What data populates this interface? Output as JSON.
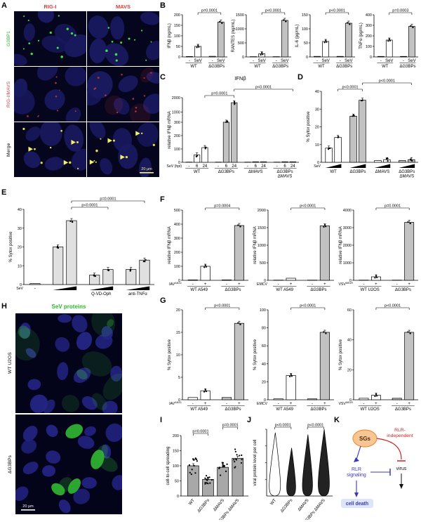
{
  "panels": {
    "A": "A",
    "B": "B",
    "C": "C",
    "D": "D",
    "E": "E",
    "F": "F",
    "G": "G",
    "H": "H",
    "I": "I",
    "J": "J",
    "K": "K"
  },
  "colors": {
    "wt_bar": "#ffffff",
    "ko_bar": "#c2c2c2",
    "red_label": "#e03a3a",
    "green_label": "#2db82d",
    "blue_text": "#3a3ab8",
    "red_text": "#d42020",
    "sg_fill": "#f8c695",
    "sg_stroke": "#e79440"
  },
  "panelA": {
    "col_headers": [
      "RIG-I",
      "MAVS"
    ],
    "row_labels": [
      "G3BP1",
      "RIG-I/MAVS",
      "Merge"
    ],
    "scale_bar_label": "20 μm"
  },
  "panelH": {
    "title": "SeV proteins",
    "row_labels": [
      "WT U2OS",
      "ΔG3BPs"
    ],
    "scale_bar_label": "20 μm"
  },
  "panelK": {
    "sg_label": "SGs",
    "rlr_independent_1": "RLR-",
    "rlr_independent_2": "independent",
    "rlr_signaling_1": "RLR",
    "rlr_signaling_2": "signaling",
    "virus": "virus",
    "cell_death": "cell death"
  },
  "chart_data": {
    "panelB": [
      {
        "type": "bar",
        "ylabel": "IFNβ (ng/mL)",
        "ylim": [
          0,
          200
        ],
        "yticks": [
          0,
          50,
          100,
          150,
          200
        ],
        "values": [
          2,
          50,
          3,
          165
        ],
        "bar_labels": [
          "-",
          "SeV",
          "-",
          "SeV"
        ],
        "bar_fills": [
          "#ffffff",
          "#ffffff",
          "#c2c2c2",
          "#c2c2c2"
        ],
        "groups": [
          {
            "label": "WT",
            "from": 0,
            "to": 1
          },
          {
            "label": "ΔG3BPs",
            "from": 2,
            "to": 3
          }
        ],
        "group_underline": true,
        "dots": true,
        "sig": [
          {
            "from": 1,
            "to": 3,
            "label": "p=0.0001",
            "level": 0
          }
        ]
      },
      {
        "type": "bar",
        "ylabel": "RANTES (ng/mL)",
        "ylim": [
          0,
          1500
        ],
        "yticks": [
          0,
          500,
          1000,
          1500
        ],
        "values": [
          10,
          110,
          10,
          1300
        ],
        "bar_labels": [
          "-",
          "SeV",
          "-",
          "SeV"
        ],
        "bar_fills": [
          "#ffffff",
          "#ffffff",
          "#c2c2c2",
          "#c2c2c2"
        ],
        "groups": [
          {
            "label": "WT",
            "from": 0,
            "to": 1
          },
          {
            "label": "ΔG3BPs",
            "from": 2,
            "to": 3
          }
        ],
        "group_underline": true,
        "dots": true,
        "sig": [
          {
            "from": 1,
            "to": 3,
            "label": "p<0.0001",
            "level": 0
          }
        ]
      },
      {
        "type": "bar",
        "ylabel": "IL-6 (pg/mL)",
        "ylim": [
          0,
          150
        ],
        "yticks": [
          0,
          50,
          100,
          150
        ],
        "values": [
          2,
          55,
          2,
          120
        ],
        "bar_labels": [
          "-",
          "SeV",
          "-",
          "SeV"
        ],
        "bar_fills": [
          "#ffffff",
          "#ffffff",
          "#c2c2c2",
          "#c2c2c2"
        ],
        "groups": [
          {
            "label": "WT",
            "from": 0,
            "to": 1
          },
          {
            "label": "ΔG3BPs",
            "from": 2,
            "to": 3
          }
        ],
        "group_underline": true,
        "dots": true,
        "sig": [
          {
            "from": 1,
            "to": 3,
            "label": "p<0.0001",
            "level": 0
          }
        ]
      },
      {
        "type": "bar",
        "ylabel": "TNFα (pg/mL)",
        "ylim": [
          0,
          400
        ],
        "yticks": [
          0,
          100,
          200,
          300,
          400
        ],
        "values": [
          5,
          160,
          5,
          290
        ],
        "bar_labels": [
          "-",
          "SeV",
          "-",
          "SeV"
        ],
        "bar_fills": [
          "#ffffff",
          "#ffffff",
          "#c2c2c2",
          "#c2c2c2"
        ],
        "groups": [
          {
            "label": "WT",
            "from": 0,
            "to": 1
          },
          {
            "label": "ΔG3BPs",
            "from": 2,
            "to": 3
          }
        ],
        "group_underline": true,
        "dots": true,
        "sig": [
          {
            "from": 1,
            "to": 3,
            "label": "p=0.0003",
            "level": 0
          }
        ]
      }
    ],
    "panelC": {
      "type": "bar",
      "title": "IFNβ",
      "ylabel": "relative IFNβ mRNA",
      "ylim": [
        0,
        2000
      ],
      "yticks": [
        0,
        100,
        200,
        300,
        1000,
        2000
      ],
      "segments": [
        [
          0,
          300,
          0.62
        ],
        [
          300,
          2000,
          0.38
        ]
      ],
      "values": [
        0,
        55,
        110,
        0,
        300,
        1650,
        0,
        4,
        4,
        0,
        4,
        4
      ],
      "bar_labels": [
        "-",
        "6",
        "24",
        "-",
        "6",
        "24",
        "-",
        "6",
        "24",
        "-",
        "6",
        "24"
      ],
      "bar_fills": [
        "#ffffff",
        "#ffffff",
        "#ffffff",
        "#c2c2c2",
        "#c2c2c2",
        "#c2c2c2",
        "#ffffff",
        "#ffffff",
        "#ffffff",
        "#c2c2c2",
        "#c2c2c2",
        "#c2c2c2"
      ],
      "groups": [
        {
          "label": "WT",
          "from": 0,
          "to": 2
        },
        {
          "label": "ΔG3BPs",
          "from": 3,
          "to": 5
        },
        {
          "label": "ΔMAVS",
          "from": 6,
          "to": 8
        },
        {
          "label": [
            "ΔG3BPs",
            "ΔMAVS"
          ],
          "from": 9,
          "to": 11
        }
      ],
      "group_underline": true,
      "dots": true,
      "xlabel_left": {
        "text": "SeV (hpi)"
      },
      "sig": [
        {
          "from": 2,
          "to": 5,
          "label": "p=0.0001",
          "level": 0
        },
        {
          "from": 5,
          "to": 11,
          "label": "p<0.0001",
          "level": 1
        }
      ]
    },
    "panelD": {
      "type": "bar",
      "ylabel": "% Sytox positive",
      "ylim": [
        0,
        40
      ],
      "yticks": [
        0,
        10,
        20,
        30,
        40
      ],
      "values": [
        8,
        14,
        26,
        35,
        1,
        1.5,
        1,
        1.5
      ],
      "bar_fills": [
        "#ffffff",
        "#ffffff",
        "#c2c2c2",
        "#c2c2c2",
        "#ffffff",
        "#ffffff",
        "#c2c2c2",
        "#c2c2c2"
      ],
      "groups": [
        {
          "label": "WT",
          "from": 0,
          "to": 1
        },
        {
          "label": "ΔG3BPs",
          "from": 2,
          "to": 3
        },
        {
          "label": "ΔMAVS",
          "from": 4,
          "to": 5
        },
        {
          "label": [
            "ΔG3BPs",
            "ΔMAVS"
          ],
          "from": 6,
          "to": 7
        }
      ],
      "ramps": [
        {
          "from": 0,
          "to": 1
        },
        {
          "from": 2,
          "to": 3
        },
        {
          "from": 4,
          "to": 5
        },
        {
          "from": 6,
          "to": 7
        }
      ],
      "xlabel_left": {
        "text": "SeV"
      },
      "dots": true,
      "sig": [
        {
          "from": 1,
          "to": 3,
          "label": "p<0.0001",
          "level": 0
        },
        {
          "from": 3,
          "to": 7,
          "label": "p<0.0001",
          "level": 1
        }
      ]
    },
    "panelE": {
      "type": "bar",
      "ylabel": "% Sytox positive",
      "ylim": [
        0,
        40
      ],
      "yticks": [
        0,
        10,
        20,
        30,
        40
      ],
      "values": [
        0.5,
        20,
        34,
        5,
        8,
        8,
        13
      ],
      "bar_labels": [
        "-",
        "",
        "",
        "",
        "",
        "",
        ""
      ],
      "bar_fills": [
        "#e0e0e0",
        "#e0e0e0",
        "#e0e0e0",
        "#e0e0e0",
        "#e0e0e0",
        "#e0e0e0",
        "#e0e0e0"
      ],
      "groups": [
        {
          "label": "",
          "from": 0,
          "to": 0
        },
        {
          "label": "",
          "from": 1,
          "to": 2
        },
        {
          "label": "Q-VD-Oph",
          "from": 3,
          "to": 4
        },
        {
          "label": "anti-TNFα",
          "from": 5,
          "to": 6
        }
      ],
      "ramps": [
        {
          "from": 1,
          "to": 2
        },
        {
          "from": 3,
          "to": 4
        },
        {
          "from": 5,
          "to": 6
        }
      ],
      "xlabel_left": {
        "text": "SeV"
      },
      "dots": true,
      "sig": [
        {
          "from": 2,
          "to": 4,
          "label": "p<0.0001",
          "level": 0
        },
        {
          "from": 2,
          "to": 6,
          "label": "p=0.0001",
          "level": 1
        }
      ]
    },
    "panelF": [
      {
        "type": "bar",
        "ylabel": "relative IFNβ mRNA",
        "ylim": [
          0,
          500
        ],
        "yticks": [
          0,
          100,
          200,
          300,
          400,
          500
        ],
        "values": [
          3,
          100,
          3,
          390
        ],
        "bar_labels": [
          "-",
          "+",
          "-",
          "+"
        ],
        "bar_fills": [
          "#ffffff",
          "#ffffff",
          "#c2c2c2",
          "#c2c2c2"
        ],
        "groups": [
          {
            "label": "WT A549",
            "from": 0,
            "to": 1
          },
          {
            "label": "ΔG3BPs",
            "from": 2,
            "to": 3
          }
        ],
        "group_underline": true,
        "dots": true,
        "xlabel_left": {
          "text": "IAV",
          "sup": "ΔNS1"
        },
        "sig": [
          {
            "from": 1,
            "to": 3,
            "label": "p=0.0004",
            "level": 0
          }
        ]
      },
      {
        "type": "bar",
        "ylabel": "relative IFNβ mRNA",
        "ylim": [
          0,
          2000
        ],
        "yticks": [
          0,
          500,
          1000,
          1500,
          2000
        ],
        "values": [
          5,
          60,
          5,
          1550
        ],
        "bar_labels": [
          "-",
          "+",
          "-",
          "+"
        ],
        "bar_fills": [
          "#ffffff",
          "#ffffff",
          "#c2c2c2",
          "#c2c2c2"
        ],
        "groups": [
          {
            "label": "WT A549",
            "from": 0,
            "to": 1
          },
          {
            "label": "ΔG3BPs",
            "from": 2,
            "to": 3
          }
        ],
        "group_underline": true,
        "dots": true,
        "xlabel_left": {
          "text": "EMCV"
        },
        "sig": [
          {
            "from": 1,
            "to": 3,
            "label": "p<0.0001",
            "level": 0
          }
        ]
      },
      {
        "type": "bar",
        "ylabel": "relative IFNβ mRNA",
        "ylim": [
          0,
          4000
        ],
        "yticks": [
          0,
          1000,
          2000,
          3000,
          4000
        ],
        "values": [
          10,
          200,
          10,
          3300
        ],
        "bar_labels": [
          "-",
          "+",
          "-",
          "+"
        ],
        "bar_fills": [
          "#ffffff",
          "#ffffff",
          "#c2c2c2",
          "#c2c2c2"
        ],
        "groups": [
          {
            "label": "WT U2OS",
            "from": 0,
            "to": 1
          },
          {
            "label": "ΔG3BPs",
            "from": 2,
            "to": 3
          }
        ],
        "group_underline": true,
        "dots": true,
        "xlabel_left": {
          "text": "VSV",
          "sup": "M51R"
        },
        "sig": [
          {
            "from": 1,
            "to": 3,
            "label": "p=0.0001",
            "level": 0
          }
        ]
      }
    ],
    "panelG": [
      {
        "type": "bar",
        "ylabel": "% Sytox positive",
        "ylim": [
          0,
          20
        ],
        "yticks": [
          0,
          5,
          10,
          15,
          20
        ],
        "values": [
          0.5,
          2,
          0.5,
          17
        ],
        "bar_labels": [
          "-",
          "+",
          "-",
          "+"
        ],
        "bar_fills": [
          "#ffffff",
          "#ffffff",
          "#c2c2c2",
          "#c2c2c2"
        ],
        "groups": [
          {
            "label": "WT A549",
            "from": 0,
            "to": 1
          },
          {
            "label": "ΔG3BPs",
            "from": 2,
            "to": 3
          }
        ],
        "group_underline": true,
        "dots": true,
        "xlabel_left": {
          "text": "IAV",
          "sup": "ΔNS1"
        },
        "sig": [
          {
            "from": 1,
            "to": 3,
            "label": "p<0.0001",
            "level": 0
          }
        ]
      },
      {
        "type": "bar",
        "ylabel": "% Sytox positive",
        "ylim": [
          0,
          100
        ],
        "yticks": [
          0,
          20,
          40,
          60,
          80,
          100
        ],
        "values": [
          1,
          27,
          1,
          75
        ],
        "bar_labels": [
          "-",
          "+",
          "-",
          "+"
        ],
        "bar_fills": [
          "#ffffff",
          "#ffffff",
          "#c2c2c2",
          "#c2c2c2"
        ],
        "groups": [
          {
            "label": "WT A549",
            "from": 0,
            "to": 1
          },
          {
            "label": "ΔG3BPs",
            "from": 2,
            "to": 3
          }
        ],
        "group_underline": true,
        "dots": true,
        "xlabel_left": {
          "text": "EMCV"
        },
        "sig": [
          {
            "from": 1,
            "to": 3,
            "label": "p<0.0001",
            "level": 0
          }
        ]
      },
      {
        "type": "bar",
        "ylabel": "% Sytox positive",
        "ylim": [
          0,
          60
        ],
        "yticks": [
          0,
          20,
          40,
          60
        ],
        "values": [
          1,
          3,
          1,
          45
        ],
        "bar_labels": [
          "-",
          "+",
          "-",
          "+"
        ],
        "bar_fills": [
          "#ffffff",
          "#ffffff",
          "#c2c2c2",
          "#c2c2c2"
        ],
        "groups": [
          {
            "label": "WT U2OS",
            "from": 0,
            "to": 1
          },
          {
            "label": "ΔG3BPs",
            "from": 2,
            "to": 3
          }
        ],
        "group_underline": true,
        "dots": true,
        "xlabel_left": {
          "text": "VSV",
          "sup": "M51R"
        },
        "sig": [
          {
            "from": 1,
            "to": 3,
            "label": "p<0.0001",
            "level": 0
          }
        ]
      }
    ],
    "panelI": {
      "type": "bar",
      "ylabel": "cell-to-cell spreading",
      "ylim": [
        0,
        200
      ],
      "yticks": [
        0,
        50,
        100,
        150,
        200
      ],
      "values": [
        100,
        55,
        95,
        125
      ],
      "bar_fills": [
        "#a8a8a8",
        "#a8a8a8",
        "#a8a8a8",
        "#a8a8a8"
      ],
      "rotate_labels": true,
      "cat_labels": [
        "WT",
        "ΔG3BPs",
        "ΔMAVS",
        "ΔG3BPs ΔMAVS"
      ],
      "scatter": true,
      "sig": [
        {
          "from": 0,
          "to": 1,
          "label": "p=0.0001",
          "level": 0
        },
        {
          "from": 2,
          "to": 3,
          "label": "p=0.0001",
          "level": 1
        }
      ]
    },
    "panelJ": {
      "type": "violin",
      "ylabel": "viral protein level per cell",
      "categories": [
        "WT",
        "ΔG3BPs",
        "ΔMAVS",
        "ΔG3BPs ΔMAVS"
      ],
      "violins": [
        {
          "fill": "#ffffff",
          "peak": 0.1,
          "top": 0.95,
          "width": 1.0
        },
        {
          "fill": "#222222",
          "peak": 0.1,
          "top": 0.72,
          "width": 0.8
        },
        {
          "fill": "#222222",
          "peak": 0.12,
          "top": 0.92,
          "width": 0.9
        },
        {
          "fill": "#222222",
          "peak": 0.15,
          "top": 1.0,
          "width": 1.0
        }
      ],
      "sig": [
        {
          "from": 0,
          "to": 1,
          "label": "p<0.0001",
          "level": 0
        },
        {
          "from": 2,
          "to": 3,
          "label": "p<0.0001",
          "level": 0
        }
      ]
    }
  }
}
